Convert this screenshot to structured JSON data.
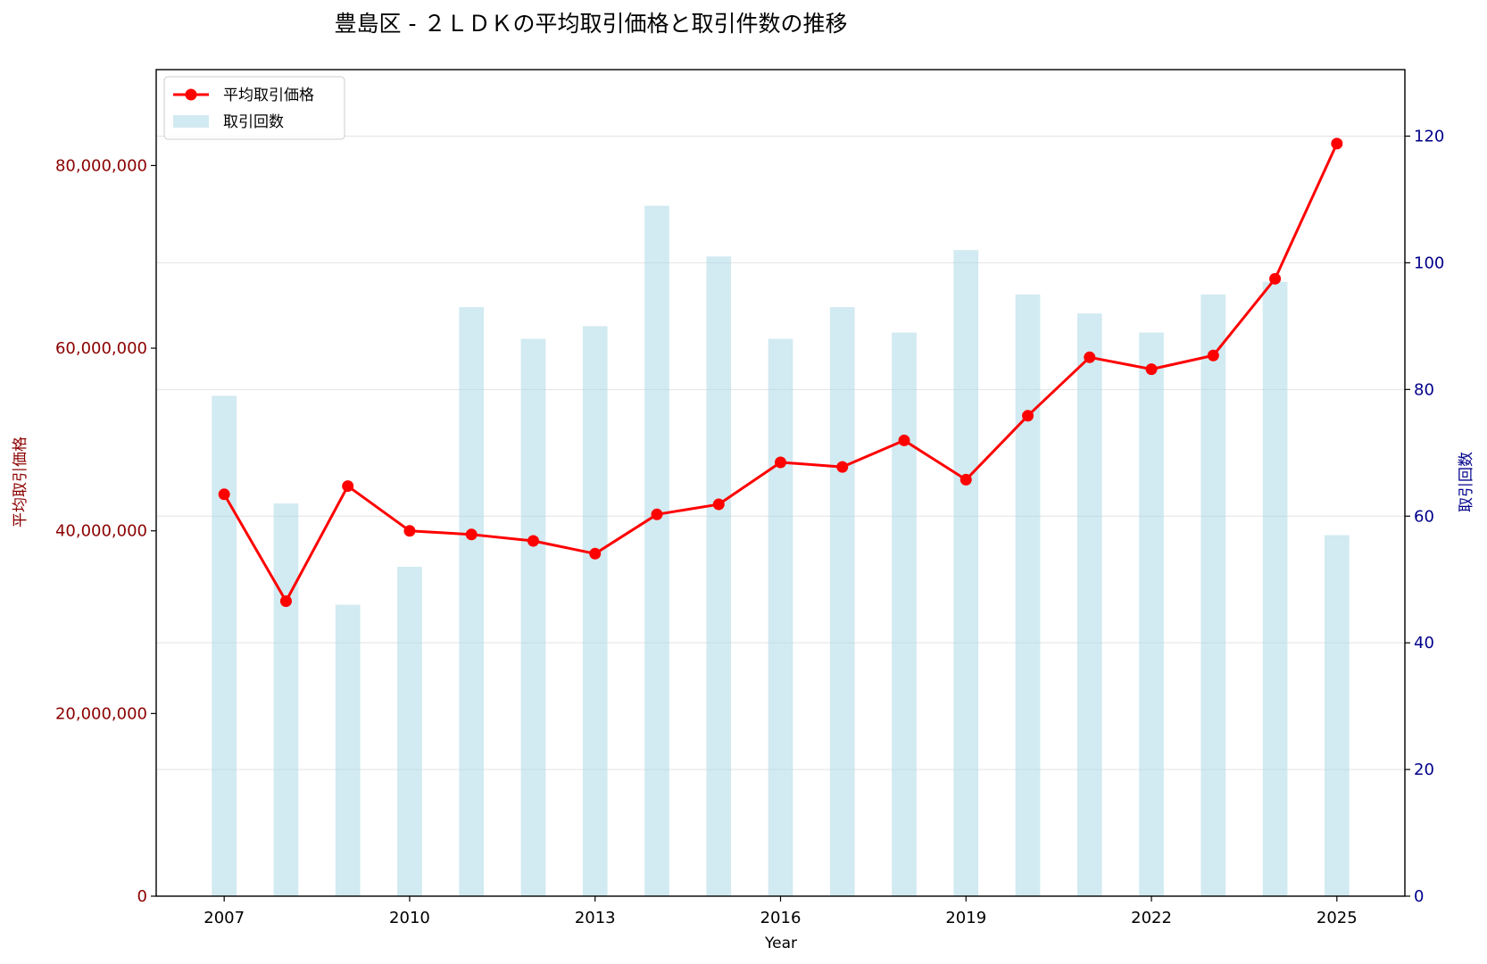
{
  "colors": {
    "line": "#ff0000",
    "marker": "#ff0000",
    "bar": "#add8e6",
    "left_axis": "#8b0000",
    "right_axis": "#00008b",
    "grid": "#b0b0b0",
    "frame": "#000000"
  },
  "chart_data": {
    "type": "bar+line",
    "title": "豊島区 - ２ＬＤＫの平均取引価格と取引件数の推移",
    "xlabel": "Year",
    "ylabel_left": "平均取引価格",
    "ylabel_right": "取引回数",
    "x_ticks": [
      "2007",
      "2010",
      "2013",
      "2016",
      "2019",
      "2022",
      "2025"
    ],
    "x_range": [
      2005.9,
      2026.1
    ],
    "y_left_range": [
      0,
      90500000
    ],
    "y_left_ticks": [
      0,
      20000000,
      40000000,
      60000000,
      80000000
    ],
    "y_left_tick_labels": [
      "0",
      "20,000,000",
      "40,000,000",
      "60,000,000",
      "80,000,000"
    ],
    "y_right_range": [
      0,
      130.5
    ],
    "y_right_ticks": [
      0,
      20,
      40,
      60,
      80,
      100,
      120
    ],
    "y_right_tick_labels": [
      "0",
      "20",
      "40",
      "60",
      "80",
      "100",
      "120"
    ],
    "grid": "horizontal, right axis",
    "legend_position": "top-left",
    "years": [
      2007,
      2008,
      2009,
      2010,
      2011,
      2012,
      2013,
      2014,
      2015,
      2016,
      2017,
      2018,
      2019,
      2020,
      2021,
      2022,
      2023,
      2024,
      2025
    ],
    "series": [
      {
        "name": "平均取引価格",
        "type": "line",
        "axis": "left",
        "values": [
          44000000,
          32300000,
          44900000,
          40000000,
          39600000,
          38900000,
          37500000,
          41800000,
          42900000,
          47500000,
          47000000,
          49900000,
          45600000,
          52600000,
          59000000,
          57700000,
          59200000,
          67600000,
          82400000
        ]
      },
      {
        "name": "取引回数",
        "type": "bar",
        "axis": "right",
        "values": [
          79,
          62,
          46,
          52,
          93,
          88,
          90,
          109,
          101,
          88,
          93,
          89,
          102,
          95,
          92,
          89,
          95,
          97,
          57
        ]
      }
    ]
  }
}
